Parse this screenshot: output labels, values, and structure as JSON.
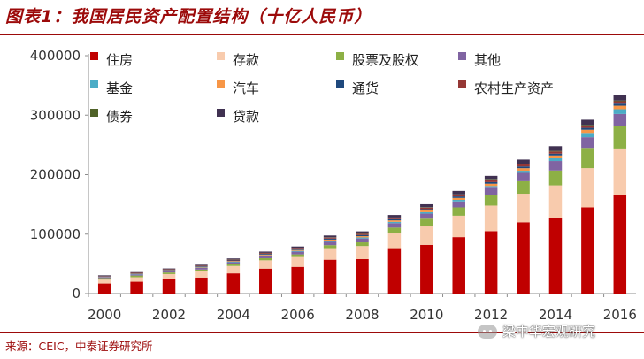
{
  "title": "图表1：我国居民资产配置结构（十亿人民币）",
  "source": "来源：CEIC，中泰证券研究所",
  "watermark": "梁中华宏观研究",
  "watermark_icon": "wechat-icon",
  "chart_data": {
    "type": "bar",
    "stacked": true,
    "categories": [
      "2000",
      "2001",
      "2002",
      "2003",
      "2004",
      "2005",
      "2006",
      "2007",
      "2008",
      "2009",
      "2010",
      "2011",
      "2012",
      "2013",
      "2014",
      "2015",
      "2016"
    ],
    "x_tick_labels": [
      "2000",
      "2002",
      "2004",
      "2006",
      "2008",
      "2010",
      "2012",
      "2014",
      "2016"
    ],
    "ylim": [
      0,
      400000
    ],
    "yticks": [
      0,
      100000,
      200000,
      300000,
      400000
    ],
    "ytick_labels": [
      "0",
      "100000",
      "200000",
      "300000",
      "400000"
    ],
    "legend_position": "top-left",
    "series": [
      {
        "name": "住房",
        "color": "#c00000",
        "values": [
          17000,
          20000,
          24000,
          27000,
          34000,
          42000,
          45000,
          57000,
          58000,
          75000,
          82000,
          95000,
          105000,
          120000,
          127000,
          145000,
          166000
        ]
      },
      {
        "name": "存款",
        "color": "#f8cbad",
        "values": [
          6500,
          7500,
          8800,
          10500,
          12500,
          14000,
          16500,
          18000,
          22000,
          27000,
          31000,
          36000,
          43000,
          48000,
          55000,
          66000,
          78000
        ]
      },
      {
        "name": "股票及股权",
        "color": "#8db045",
        "values": [
          2500,
          2800,
          2700,
          2900,
          3000,
          3500,
          4500,
          6500,
          6200,
          9000,
          13000,
          14000,
          18000,
          21000,
          25000,
          34000,
          38000
        ]
      },
      {
        "name": "其他",
        "color": "#8064a2",
        "values": [
          1600,
          2000,
          2300,
          2800,
          3200,
          3800,
          4500,
          5500,
          6500,
          7500,
          8500,
          10000,
          12000,
          14000,
          16000,
          18000,
          20000
        ]
      },
      {
        "name": "基金",
        "color": "#4bacc6",
        "values": [
          400,
          500,
          600,
          700,
          900,
          1100,
          1400,
          2000,
          1800,
          2200,
          2400,
          2600,
          3000,
          3600,
          4500,
          7200,
          8000
        ]
      },
      {
        "name": "汽车",
        "color": "#f79646",
        "values": [
          500,
          600,
          700,
          900,
          1100,
          1300,
          1500,
          1800,
          2100,
          2500,
          2900,
          3300,
          3800,
          4300,
          4800,
          5300,
          5900
        ]
      },
      {
        "name": "通货",
        "color": "#1f497d",
        "values": [
          600,
          700,
          800,
          1000,
          1100,
          1200,
          1400,
          1700,
          1900,
          2000,
          2300,
          2500,
          2700,
          2900,
          3000,
          3200,
          3500
        ]
      },
      {
        "name": "农村生产资产",
        "color": "#953735",
        "values": [
          700,
          800,
          900,
          1000,
          1200,
          1300,
          1500,
          1700,
          2000,
          2200,
          2500,
          2800,
          3000,
          3300,
          3600,
          3800,
          4000
        ]
      },
      {
        "name": "债券",
        "color": "#4f6228",
        "values": [
          150,
          200,
          250,
          300,
          350,
          400,
          450,
          500,
          550,
          600,
          650,
          700,
          800,
          900,
          1000,
          1100,
          1200
        ]
      },
      {
        "name": "贷款",
        "color": "#403151",
        "values": [
          900,
          1000,
          1200,
          1500,
          1800,
          2100,
          2500,
          3000,
          3600,
          4200,
          5000,
          5800,
          6700,
          7400,
          8000,
          8700,
          9500
        ]
      }
    ]
  }
}
